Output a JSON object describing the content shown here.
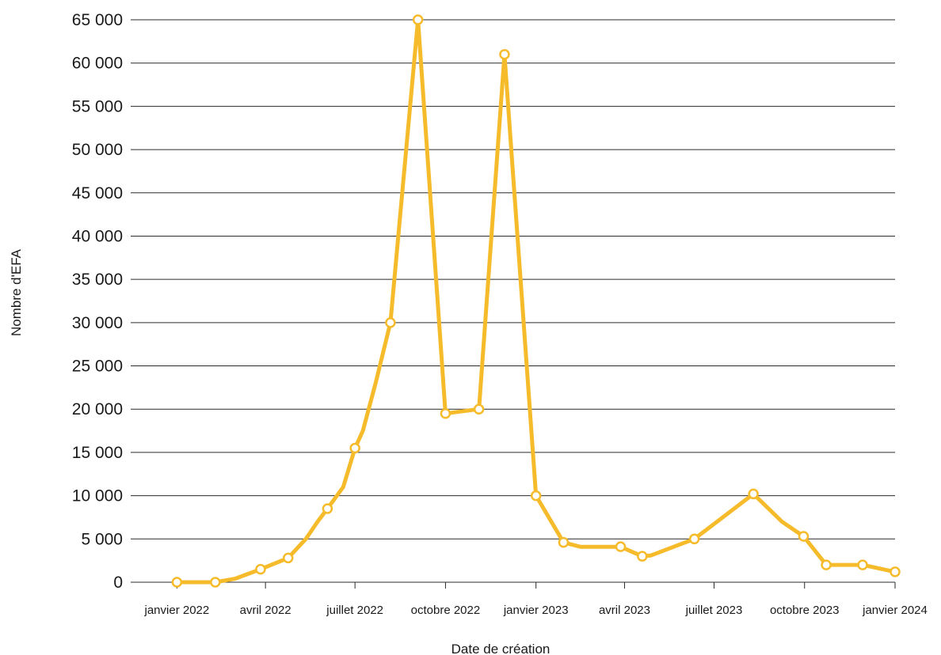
{
  "chart_data": {
    "type": "line",
    "xlabel": "Date de création",
    "ylabel": "Nombre d'EFA",
    "ylim": [
      0,
      65000
    ],
    "yticks": [
      0,
      5000,
      10000,
      15000,
      20000,
      25000,
      30000,
      35000,
      40000,
      45000,
      50000,
      55000,
      60000,
      65000
    ],
    "ytick_labels": [
      "0",
      "5 000",
      "10 000",
      "15 000",
      "20 000",
      "25 000",
      "30 000",
      "35 000",
      "40 000",
      "45 000",
      "50 000",
      "55 000",
      "60 000",
      "65 000"
    ],
    "xlim": [
      "2021-11-15",
      "2024-01-01"
    ],
    "xticks": [
      "2022-01-01",
      "2022-04-01",
      "2022-07-01",
      "2022-10-01",
      "2023-01-01",
      "2023-04-01",
      "2023-07-01",
      "2023-10-01",
      "2024-01-01"
    ],
    "xtick_labels": [
      "janvier 2022",
      "avril 2022",
      "juillet 2022",
      "octobre 2022",
      "janvier 2023",
      "avril 2023",
      "juillet 2023",
      "octobre 2023",
      "janvier 2024"
    ],
    "grid": "horizontal",
    "line_color": "#f6bb2b",
    "marker_fill": "#ffffff",
    "series": [
      {
        "x": [
          "2022-01-01",
          "2022-02-09",
          "2022-03-01",
          "2022-03-27",
          "2022-04-24",
          "2022-05-12",
          "2022-05-24",
          "2022-06-03",
          "2022-06-19",
          "2022-07-01",
          "2022-07-09",
          "2022-07-22",
          "2022-08-06",
          "2022-09-03",
          "2022-10-01",
          "2022-11-04",
          "2022-11-30",
          "2023-01-01",
          "2023-01-29",
          "2023-02-15",
          "2023-03-01",
          "2023-03-28",
          "2023-04-19",
          "2023-04-28",
          "2023-06-11",
          "2023-08-10",
          "2023-09-08",
          "2023-09-30",
          "2023-10-23",
          "2023-11-29",
          "2024-01-01"
        ],
        "y": [
          0,
          0,
          400,
          1500,
          2800,
          5000,
          7000,
          8500,
          11000,
          15500,
          17500,
          23000,
          30000,
          65000,
          19500,
          20000,
          61000,
          10000,
          4600,
          4100,
          4100,
          4100,
          3000,
          3100,
          5000,
          10200,
          7000,
          5300,
          2000,
          2000,
          1200
        ],
        "markers": [
          true,
          true,
          false,
          true,
          true,
          false,
          false,
          true,
          false,
          true,
          false,
          false,
          true,
          true,
          true,
          true,
          true,
          true,
          true,
          false,
          false,
          true,
          true,
          false,
          true,
          true,
          false,
          true,
          true,
          true,
          true
        ]
      }
    ]
  }
}
